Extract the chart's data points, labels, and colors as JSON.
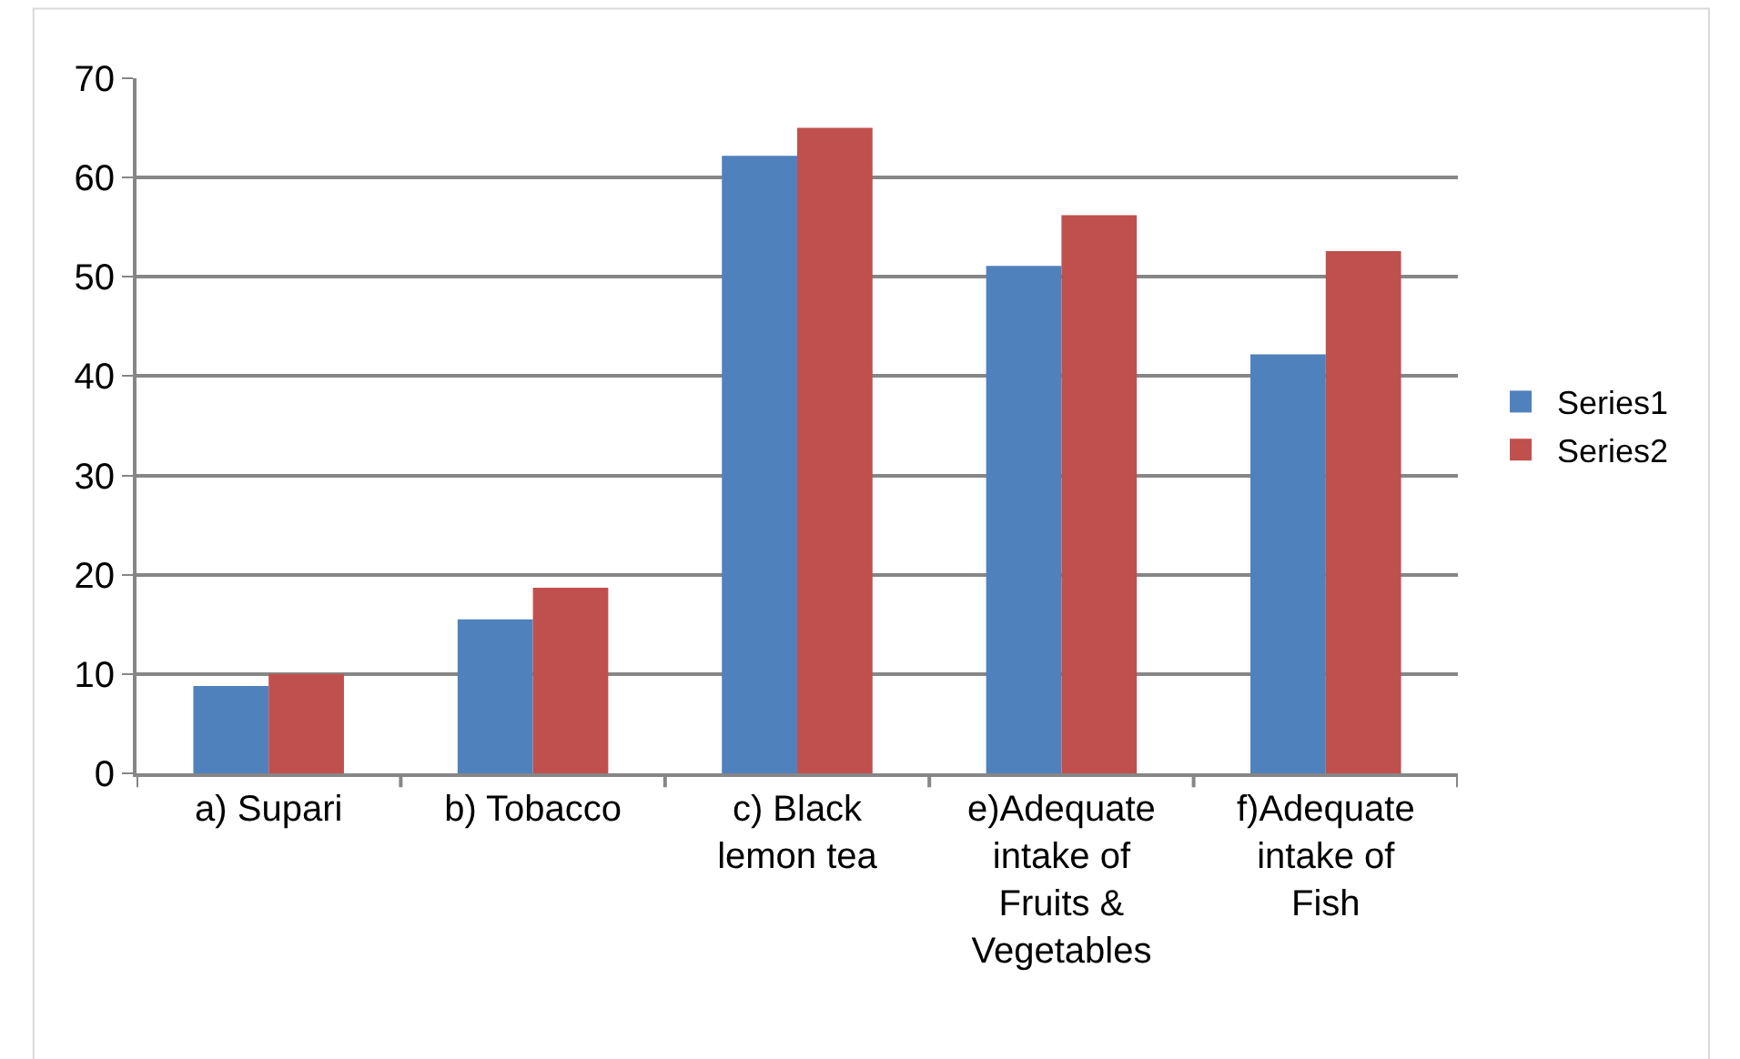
{
  "chart_data": {
    "type": "bar",
    "categories": [
      "a) Supari",
      "b) Tobacco",
      "c) Black lemon tea",
      "e)Adequate intake of Fruits & Vegetables",
      "f)Adequate intake of Fish"
    ],
    "series": [
      {
        "name": "Series1",
        "color": "#4f81bd",
        "values": [
          8.8,
          15.5,
          62.2,
          51.1,
          42.2
        ]
      },
      {
        "name": "Series2",
        "color": "#c0504d",
        "values": [
          10.0,
          18.7,
          65.0,
          56.2,
          52.6
        ]
      }
    ],
    "ylim": [
      0,
      70
    ],
    "yticks": [
      0,
      10,
      20,
      30,
      40,
      50,
      60,
      70
    ],
    "grid": "y",
    "legend": "right"
  }
}
